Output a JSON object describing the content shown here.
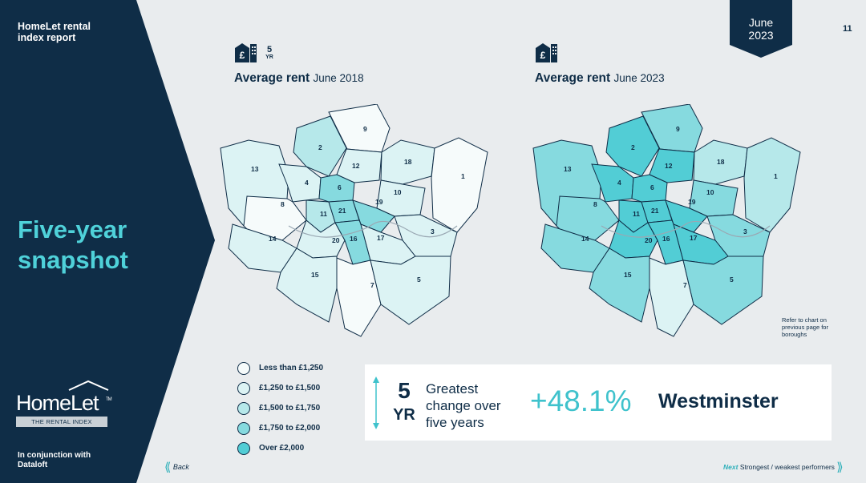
{
  "sidebar": {
    "report_title": "HomeLet rental index report",
    "heading": "Five-year snapshot",
    "logo_name": "HomeLet",
    "logo_tm": "TM",
    "logo_tagline": "THE RENTAL INDEX",
    "partner_text": "In conjunction with Dataloft"
  },
  "header": {
    "date_month": "June",
    "date_year": "2023",
    "page_number": "11"
  },
  "maps": [
    {
      "icon": "rent-house-icon",
      "badge_num": "5",
      "badge_unit": "YR",
      "title_bold": "Average rent",
      "title_date": "June 2018"
    },
    {
      "icon": "rent-house-icon",
      "title_bold": "Average rent",
      "title_date": "June 2023"
    }
  ],
  "note": "Refer to chart on previous page for boroughs",
  "legend": [
    {
      "label": "Less than £1,250",
      "color": "#f6fbfb"
    },
    {
      "label": "£1,250 to £1,500",
      "color": "#dcf3f4"
    },
    {
      "label": "£1,500 to £1,750",
      "color": "#b6e8ea"
    },
    {
      "label": "£1,750 to £2,000",
      "color": "#86dadf"
    },
    {
      "label": "Over £2,000",
      "color": "#52cdd5"
    }
  ],
  "stat": {
    "period_num": "5",
    "period_unit": "YR",
    "description": "Greatest change over five years",
    "change": "+48.1%",
    "location": "Westminster"
  },
  "nav": {
    "back_label": "Back",
    "next_word": "Next",
    "next_label": "Strongest / weakest performers"
  },
  "colors": {
    "navy": "#0f2d47",
    "accent": "#4fd1d9",
    "background": "#e9ecee"
  }
}
